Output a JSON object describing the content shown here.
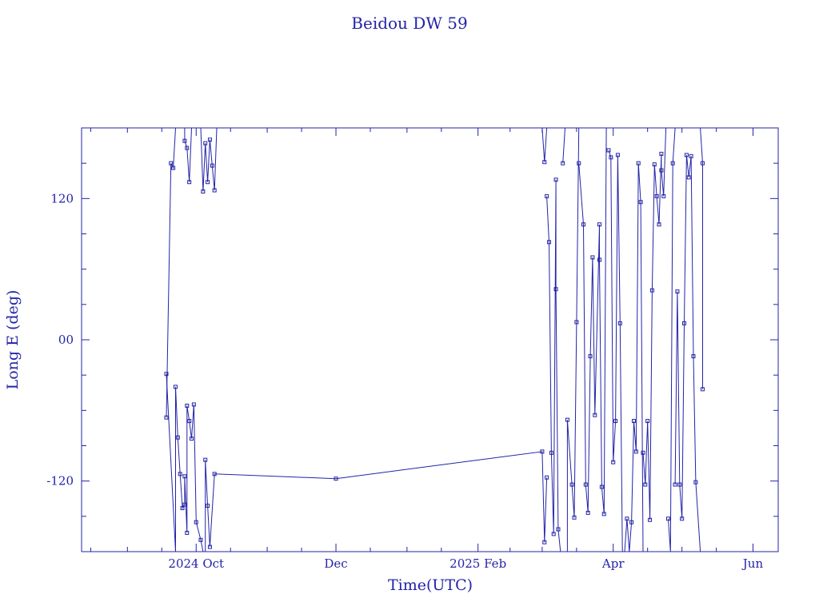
{
  "chart_data": {
    "type": "line",
    "title": "Beidou DW 59",
    "xlabel": "Time(UTC)",
    "ylabel": "Long E (deg)",
    "x_tick_labels": [
      "2024 Oct",
      "Dec",
      "2025 Feb",
      "Apr",
      "Jun"
    ],
    "x_tick_dates": [
      "2024-10-01",
      "2024-12-01",
      "2025-02-01",
      "2025-04-01",
      "2025-06-01"
    ],
    "xlim": [
      "2024-08-12",
      "2025-06-12"
    ],
    "y_tick_labels": [
      "120",
      "00",
      "-120"
    ],
    "y_tick_values": [
      120,
      0,
      -120
    ],
    "ylim": [
      -180,
      180
    ],
    "color": "#2323a8",
    "marker": "square",
    "series": [
      {
        "points": [
          [
            "2024-09-18",
            -66
          ],
          [
            "2024-09-20",
            150
          ],
          [
            "2024-09-21",
            146
          ],
          [
            "2024-09-22",
            180
          ]
        ]
      },
      {
        "points": [
          [
            "2024-09-18",
            -29
          ],
          [
            "2024-09-22",
            -180
          ]
        ]
      },
      {
        "points": [
          [
            "2024-09-22",
            -180
          ],
          [
            "2024-09-22",
            -40
          ],
          [
            "2024-09-23",
            -83
          ],
          [
            "2024-09-24",
            -114
          ],
          [
            "2024-09-25",
            -143
          ],
          [
            "2024-09-26",
            -140
          ],
          [
            "2024-09-26",
            -116
          ],
          [
            "2024-09-27",
            -164
          ],
          [
            "2024-09-27",
            -56
          ],
          [
            "2024-09-28",
            -69
          ],
          [
            "2024-09-29",
            -84
          ],
          [
            "2024-09-30",
            -55
          ],
          [
            "2024-10-01",
            -155
          ],
          [
            "2024-10-03",
            -170
          ],
          [
            "2024-10-04",
            -180
          ]
        ]
      },
      {
        "points": [
          [
            "2024-09-26",
            180
          ],
          [
            "2024-09-26",
            169
          ],
          [
            "2024-09-27",
            163
          ],
          [
            "2024-09-28",
            134
          ],
          [
            "2024-09-29",
            180
          ]
        ]
      },
      {
        "points": [
          [
            "2024-10-03",
            180
          ],
          [
            "2024-10-04",
            126
          ],
          [
            "2024-10-05",
            167
          ],
          [
            "2024-10-06",
            134
          ],
          [
            "2024-10-07",
            170
          ],
          [
            "2024-10-08",
            148
          ],
          [
            "2024-10-09",
            127
          ],
          [
            "2024-10-10",
            180
          ]
        ]
      },
      {
        "points": [
          [
            "2024-10-05",
            -180
          ],
          [
            "2024-10-05",
            -102
          ],
          [
            "2024-10-06",
            -141
          ],
          [
            "2024-10-07",
            -176
          ],
          [
            "2024-10-09",
            -114
          ],
          [
            "2024-12-01",
            -118
          ],
          [
            "2025-03-01",
            -95
          ],
          [
            "2025-03-02",
            -172
          ],
          [
            "2025-03-03",
            -117
          ]
        ]
      },
      {
        "points": [
          [
            "2025-03-01",
            180
          ],
          [
            "2025-03-02",
            151
          ],
          [
            "2025-03-03",
            180
          ]
        ]
      },
      {
        "points": [
          [
            "2025-03-03",
            122
          ],
          [
            "2025-03-04",
            83
          ],
          [
            "2025-03-05",
            -96
          ],
          [
            "2025-03-06",
            -165
          ],
          [
            "2025-03-07",
            136
          ],
          [
            "2025-03-07",
            43
          ],
          [
            "2025-03-08",
            -161
          ],
          [
            "2025-03-09",
            -180
          ]
        ]
      },
      {
        "points": [
          [
            "2025-03-10",
            150
          ],
          [
            "2025-03-11",
            180
          ]
        ]
      },
      {
        "points": [
          [
            "2025-03-12",
            -180
          ],
          [
            "2025-03-12",
            -68
          ],
          [
            "2025-03-14",
            -123
          ],
          [
            "2025-03-15",
            -151
          ],
          [
            "2025-03-16",
            15
          ],
          [
            "2025-03-17",
            180
          ]
        ]
      },
      {
        "points": [
          [
            "2025-03-17",
            150
          ],
          [
            "2025-03-19",
            98
          ],
          [
            "2025-03-20",
            -123
          ],
          [
            "2025-03-21",
            -147
          ],
          [
            "2025-03-22",
            -14
          ],
          [
            "2025-03-23",
            70
          ],
          [
            "2025-03-24",
            -64
          ],
          [
            "2025-03-26",
            98
          ],
          [
            "2025-03-26",
            68
          ],
          [
            "2025-03-27",
            -125
          ],
          [
            "2025-03-28",
            -148
          ],
          [
            "2025-03-29",
            180
          ]
        ]
      },
      {
        "points": [
          [
            "2025-03-30",
            161
          ],
          [
            "2025-03-31",
            155
          ],
          [
            "2025-04-01",
            -104
          ],
          [
            "2025-04-02",
            -69
          ],
          [
            "2025-04-03",
            157
          ],
          [
            "2025-04-04",
            14
          ],
          [
            "2025-04-05",
            -180
          ]
        ]
      },
      {
        "points": [
          [
            "2025-04-06",
            -180
          ],
          [
            "2025-04-07",
            -152
          ],
          [
            "2025-04-08",
            -180
          ],
          [
            "2025-04-09",
            -155
          ],
          [
            "2025-04-10",
            -69
          ],
          [
            "2025-04-11",
            -95
          ],
          [
            "2025-04-12",
            150
          ],
          [
            "2025-04-13",
            117
          ],
          [
            "2025-04-14",
            -180
          ]
        ]
      },
      {
        "points": [
          [
            "2025-04-14",
            -96
          ],
          [
            "2025-04-15",
            -123
          ],
          [
            "2025-04-16",
            -69
          ],
          [
            "2025-04-17",
            -153
          ],
          [
            "2025-04-18",
            42
          ],
          [
            "2025-04-19",
            149
          ],
          [
            "2025-04-20",
            122
          ],
          [
            "2025-04-21",
            98
          ],
          [
            "2025-04-22",
            158
          ],
          [
            "2025-04-22",
            144
          ],
          [
            "2025-04-23",
            122
          ],
          [
            "2025-04-24",
            180
          ]
        ]
      },
      {
        "points": [
          [
            "2025-04-25",
            -152
          ],
          [
            "2025-04-26",
            -180
          ],
          [
            "2025-04-27",
            150
          ],
          [
            "2025-04-28",
            180
          ]
        ]
      },
      {
        "points": [
          [
            "2025-04-28",
            -123
          ],
          [
            "2025-04-29",
            41
          ],
          [
            "2025-04-30",
            -123
          ],
          [
            "2025-05-01",
            -152
          ],
          [
            "2025-05-02",
            14
          ],
          [
            "2025-05-03",
            157
          ],
          [
            "2025-05-04",
            138
          ],
          [
            "2025-05-05",
            156
          ],
          [
            "2025-05-06",
            -14
          ],
          [
            "2025-05-07",
            -121
          ],
          [
            "2025-05-09",
            -180
          ]
        ]
      },
      {
        "points": [
          [
            "2025-05-09",
            180
          ],
          [
            "2025-05-10",
            150
          ],
          [
            "2025-05-10",
            -42
          ]
        ]
      }
    ]
  }
}
